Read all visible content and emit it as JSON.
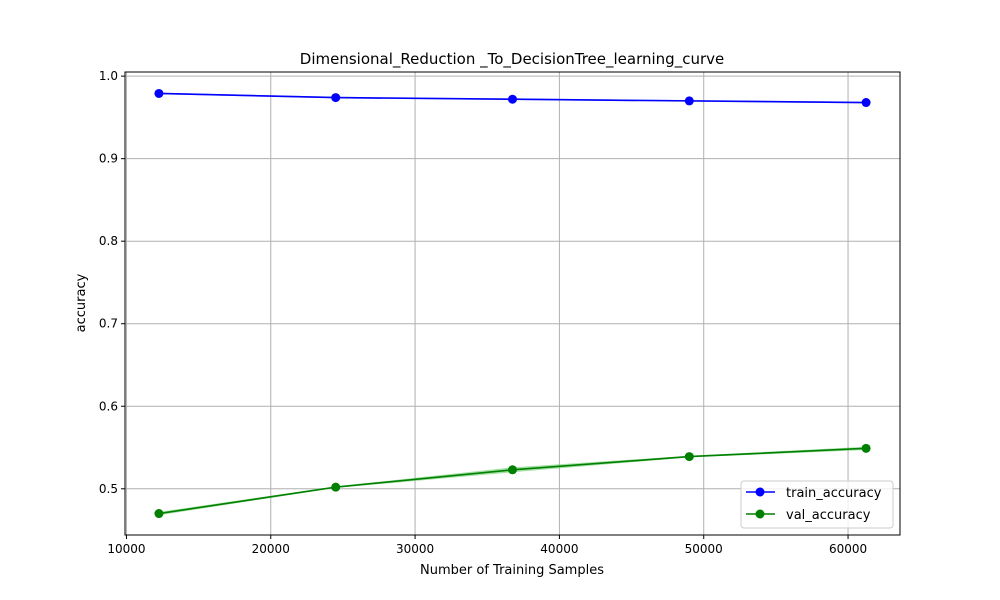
{
  "chart_data": {
    "type": "line",
    "title": "Dimensional_Reduction _To_DecisionTree_learning_curve",
    "xlabel": "Number of Training Samples",
    "ylabel": "accuracy",
    "x": [
      12250,
      24500,
      36750,
      49000,
      61250
    ],
    "xlim": [
      9900,
      63600
    ],
    "ylim": [
      0.444,
      1.005
    ],
    "xticks": [
      10000,
      20000,
      30000,
      40000,
      50000,
      60000
    ],
    "xtick_labels": [
      "10000",
      "20000",
      "30000",
      "40000",
      "50000",
      "60000"
    ],
    "yticks": [
      0.5,
      0.6,
      0.7,
      0.8,
      0.9,
      1.0
    ],
    "ytick_labels": [
      "0.5",
      "0.6",
      "0.7",
      "0.8",
      "0.9",
      "1.0"
    ],
    "grid": true,
    "legend_position": "lower-right",
    "series": [
      {
        "name": "train_accuracy",
        "color": "#0000ff",
        "band_color": "#8080ff",
        "values": [
          0.979,
          0.974,
          0.972,
          0.97,
          0.968
        ],
        "band_low": [
          0.978,
          0.973,
          0.971,
          0.969,
          0.967
        ],
        "band_high": [
          0.98,
          0.975,
          0.973,
          0.971,
          0.969
        ]
      },
      {
        "name": "val_accuracy",
        "color": "#008000",
        "band_color": "#66cc66",
        "values": [
          0.47,
          0.502,
          0.523,
          0.539,
          0.549
        ],
        "band_low": [
          0.468,
          0.501,
          0.52,
          0.538,
          0.547
        ],
        "band_high": [
          0.472,
          0.503,
          0.526,
          0.54,
          0.551
        ]
      }
    ]
  }
}
